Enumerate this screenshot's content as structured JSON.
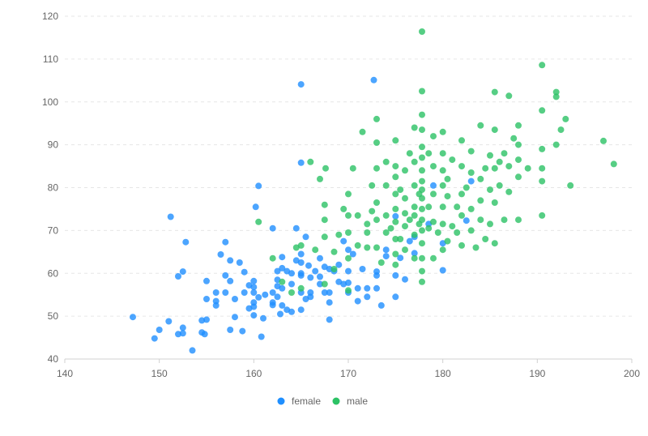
{
  "chart_data": {
    "type": "scatter",
    "xlim": [
      140,
      200
    ],
    "ylim": [
      40,
      120
    ],
    "x_ticks": [
      "140",
      "150",
      "160",
      "170",
      "180",
      "190",
      "200"
    ],
    "y_ticks": [
      "40",
      "50",
      "60",
      "70",
      "80",
      "90",
      "100",
      "110",
      "120"
    ],
    "grid": "horizontal dashed",
    "legend_position": "bottom-center",
    "series": [
      {
        "name": "female",
        "color": "#1f8fff",
        "points": [
          [
            147.2,
            49.8
          ],
          [
            149.5,
            44.8
          ],
          [
            150.0,
            46.8
          ],
          [
            151.0,
            48.8
          ],
          [
            151.2,
            73.2
          ],
          [
            152.0,
            59.3
          ],
          [
            152.0,
            45.8
          ],
          [
            152.5,
            60.4
          ],
          [
            152.5,
            46.0
          ],
          [
            152.5,
            47.3
          ],
          [
            152.8,
            67.3
          ],
          [
            153.5,
            42.0
          ],
          [
            154.5,
            49.0
          ],
          [
            154.5,
            46.2
          ],
          [
            154.8,
            45.8
          ],
          [
            155.0,
            49.2
          ],
          [
            155.0,
            54.0
          ],
          [
            155.0,
            58.2
          ],
          [
            156.0,
            53.5
          ],
          [
            156.0,
            52.5
          ],
          [
            156.0,
            55.5
          ],
          [
            156.5,
            64.4
          ],
          [
            157.0,
            67.3
          ],
          [
            157.0,
            59.5
          ],
          [
            157.0,
            55.5
          ],
          [
            157.5,
            46.8
          ],
          [
            157.5,
            63.0
          ],
          [
            157.5,
            58.2
          ],
          [
            158.0,
            54.0
          ],
          [
            158.0,
            49.8
          ],
          [
            158.5,
            62.5
          ],
          [
            158.8,
            46.5
          ],
          [
            159.0,
            60.3
          ],
          [
            159.0,
            55.5
          ],
          [
            159.5,
            51.8
          ],
          [
            159.5,
            57.2
          ],
          [
            160.0,
            50.2
          ],
          [
            160.0,
            52.2
          ],
          [
            160.0,
            55.5
          ],
          [
            160.0,
            56.8
          ],
          [
            160.0,
            53.2
          ],
          [
            160.0,
            58.2
          ],
          [
            160.2,
            75.5
          ],
          [
            160.5,
            54.4
          ],
          [
            160.5,
            80.4
          ],
          [
            160.8,
            45.2
          ],
          [
            161.0,
            49.5
          ],
          [
            161.2,
            55.0
          ],
          [
            162.0,
            52.6
          ],
          [
            162.0,
            55.5
          ],
          [
            162.0,
            53.2
          ],
          [
            162.0,
            70.5
          ],
          [
            162.5,
            54.5
          ],
          [
            162.5,
            57.0
          ],
          [
            162.5,
            60.5
          ],
          [
            162.5,
            58.5
          ],
          [
            162.8,
            50.5
          ],
          [
            163.0,
            56.5
          ],
          [
            163.0,
            52.5
          ],
          [
            163.0,
            61.2
          ],
          [
            163.0,
            63.8
          ],
          [
            163.5,
            51.5
          ],
          [
            163.5,
            60.5
          ],
          [
            164.0,
            57.5
          ],
          [
            164.0,
            60.0
          ],
          [
            164.0,
            51.0
          ],
          [
            164.5,
            63.0
          ],
          [
            164.5,
            70.5
          ],
          [
            165.0,
            104.1
          ],
          [
            165.0,
            55.5
          ],
          [
            165.0,
            59.5
          ],
          [
            165.0,
            51.5
          ],
          [
            165.0,
            64.5
          ],
          [
            165.0,
            62.5
          ],
          [
            165.0,
            60.0
          ],
          [
            165.0,
            85.8
          ],
          [
            165.5,
            68.5
          ],
          [
            165.5,
            54.0
          ],
          [
            165.8,
            61.8
          ],
          [
            166.0,
            54.5
          ],
          [
            166.0,
            55.5
          ],
          [
            166.0,
            59.0
          ],
          [
            166.5,
            60.5
          ],
          [
            167.0,
            57.5
          ],
          [
            167.0,
            63.5
          ],
          [
            167.0,
            59.2
          ],
          [
            167.5,
            61.5
          ],
          [
            167.5,
            55.5
          ],
          [
            168.0,
            61.0
          ],
          [
            168.0,
            53.2
          ],
          [
            168.0,
            49.2
          ],
          [
            168.0,
            55.5
          ],
          [
            168.5,
            60.5
          ],
          [
            169.0,
            58.0
          ],
          [
            169.0,
            62.0
          ],
          [
            169.5,
            57.5
          ],
          [
            169.5,
            67.5
          ],
          [
            170.0,
            57.8
          ],
          [
            170.0,
            65.5
          ],
          [
            170.0,
            55.5
          ],
          [
            170.0,
            60.5
          ],
          [
            170.5,
            64.5
          ],
          [
            171.0,
            56.5
          ],
          [
            171.0,
            53.5
          ],
          [
            171.5,
            61.0
          ],
          [
            172.0,
            54.5
          ],
          [
            172.0,
            56.5
          ],
          [
            172.7,
            105.1
          ],
          [
            173.0,
            59.5
          ],
          [
            173.0,
            60.4
          ],
          [
            173.0,
            56.5
          ],
          [
            173.5,
            52.5
          ],
          [
            174.0,
            65.5
          ],
          [
            174.0,
            64.0
          ],
          [
            175.0,
            54.5
          ],
          [
            175.0,
            59.5
          ],
          [
            175.0,
            73.3
          ],
          [
            175.5,
            63.6
          ],
          [
            176.0,
            58.6
          ],
          [
            176.5,
            67.5
          ],
          [
            177.0,
            64.7
          ],
          [
            177.0,
            68.5
          ],
          [
            178.5,
            71.5
          ],
          [
            179.0,
            80.5
          ],
          [
            180.0,
            60.7
          ],
          [
            180.0,
            67.0
          ],
          [
            183.0,
            81.5
          ],
          [
            182.5,
            72.3
          ]
        ]
      },
      {
        "name": "male",
        "color": "#2cc265",
        "points": [
          [
            160.5,
            72.0
          ],
          [
            162.0,
            63.5
          ],
          [
            163.0,
            58.0
          ],
          [
            164.0,
            55.5
          ],
          [
            164.5,
            66.0
          ],
          [
            165.0,
            56.5
          ],
          [
            165.0,
            66.5
          ],
          [
            166.0,
            86.0
          ],
          [
            166.5,
            65.5
          ],
          [
            167.0,
            82.0
          ],
          [
            167.5,
            57.5
          ],
          [
            167.5,
            68.5
          ],
          [
            167.5,
            72.5
          ],
          [
            167.5,
            76.0
          ],
          [
            167.6,
            84.5
          ],
          [
            168.5,
            61.0
          ],
          [
            168.5,
            65.0
          ],
          [
            169.0,
            69.0
          ],
          [
            169.5,
            75.0
          ],
          [
            170.0,
            56.0
          ],
          [
            170.0,
            63.5
          ],
          [
            170.0,
            69.5
          ],
          [
            170.0,
            73.5
          ],
          [
            170.0,
            78.5
          ],
          [
            170.5,
            84.5
          ],
          [
            171.0,
            66.5
          ],
          [
            171.0,
            73.5
          ],
          [
            171.5,
            93.0
          ],
          [
            172.0,
            66.0
          ],
          [
            172.0,
            69.5
          ],
          [
            172.0,
            71.5
          ],
          [
            172.5,
            74.5
          ],
          [
            172.5,
            80.5
          ],
          [
            173.0,
            66.0
          ],
          [
            173.0,
            72.5
          ],
          [
            173.0,
            76.5
          ],
          [
            173.0,
            84.5
          ],
          [
            173.0,
            90.5
          ],
          [
            173.0,
            96.0
          ],
          [
            173.5,
            62.5
          ],
          [
            174.0,
            69.5
          ],
          [
            174.0,
            73.5
          ],
          [
            174.0,
            80.5
          ],
          [
            174.0,
            86.0
          ],
          [
            174.5,
            70.5
          ],
          [
            175.0,
            62.0
          ],
          [
            175.0,
            64.5
          ],
          [
            175.0,
            68.0
          ],
          [
            175.0,
            72.0
          ],
          [
            175.0,
            75.0
          ],
          [
            175.0,
            78.5
          ],
          [
            175.0,
            82.5
          ],
          [
            175.0,
            85.0
          ],
          [
            175.0,
            91.0
          ],
          [
            175.5,
            68.0
          ],
          [
            175.5,
            79.5
          ],
          [
            176.0,
            65.5
          ],
          [
            176.0,
            71.0
          ],
          [
            176.0,
            74.0
          ],
          [
            176.0,
            77.5
          ],
          [
            176.0,
            84.0
          ],
          [
            176.5,
            72.5
          ],
          [
            176.5,
            88.0
          ],
          [
            177.0,
            63.5
          ],
          [
            177.0,
            69.0
          ],
          [
            177.0,
            73.5
          ],
          [
            177.0,
            75.5
          ],
          [
            177.0,
            80.5
          ],
          [
            177.0,
            86.0
          ],
          [
            177.0,
            94.0
          ],
          [
            177.5,
            71.5
          ],
          [
            177.5,
            78.5
          ],
          [
            177.8,
            58.0
          ],
          [
            177.8,
            60.5
          ],
          [
            177.8,
            63.5
          ],
          [
            177.8,
            67.0
          ],
          [
            177.8,
            70.0
          ],
          [
            177.8,
            72.5
          ],
          [
            177.8,
            75.0
          ],
          [
            177.8,
            77.5
          ],
          [
            177.8,
            79.5
          ],
          [
            177.8,
            81.5
          ],
          [
            177.8,
            84.0
          ],
          [
            177.8,
            87.0
          ],
          [
            177.8,
            89.5
          ],
          [
            177.8,
            93.5
          ],
          [
            177.8,
            97.0
          ],
          [
            177.8,
            102.5
          ],
          [
            177.8,
            116.4
          ],
          [
            178.5,
            70.5
          ],
          [
            178.5,
            75.5
          ],
          [
            178.5,
            88.0
          ],
          [
            179.0,
            63.5
          ],
          [
            179.0,
            72.0
          ],
          [
            179.0,
            78.5
          ],
          [
            179.0,
            85.0
          ],
          [
            179.0,
            92.0
          ],
          [
            179.5,
            69.5
          ],
          [
            180.0,
            65.5
          ],
          [
            180.0,
            71.5
          ],
          [
            180.0,
            75.5
          ],
          [
            180.0,
            80.5
          ],
          [
            180.0,
            84.0
          ],
          [
            180.0,
            88.0
          ],
          [
            180.0,
            93.0
          ],
          [
            180.5,
            67.5
          ],
          [
            180.5,
            78.0
          ],
          [
            180.5,
            82.0
          ],
          [
            181.0,
            71.0
          ],
          [
            181.0,
            86.5
          ],
          [
            181.5,
            69.5
          ],
          [
            181.5,
            75.5
          ],
          [
            182.0,
            66.5
          ],
          [
            182.0,
            73.5
          ],
          [
            182.0,
            78.5
          ],
          [
            182.0,
            85.0
          ],
          [
            182.0,
            91.0
          ],
          [
            182.5,
            80.0
          ],
          [
            183.0,
            70.0
          ],
          [
            183.0,
            75.0
          ],
          [
            183.0,
            83.5
          ],
          [
            183.0,
            88.5
          ],
          [
            183.5,
            66.0
          ],
          [
            184.0,
            72.5
          ],
          [
            184.0,
            77.0
          ],
          [
            184.0,
            82.0
          ],
          [
            184.0,
            94.5
          ],
          [
            184.5,
            68.0
          ],
          [
            184.5,
            84.5
          ],
          [
            185.0,
            71.5
          ],
          [
            185.0,
            79.5
          ],
          [
            185.0,
            87.5
          ],
          [
            185.5,
            67.0
          ],
          [
            185.5,
            76.5
          ],
          [
            185.5,
            84.5
          ],
          [
            185.5,
            93.5
          ],
          [
            185.5,
            102.3
          ],
          [
            186.0,
            80.5
          ],
          [
            186.0,
            86.0
          ],
          [
            186.5,
            72.5
          ],
          [
            186.5,
            88.0
          ],
          [
            187.0,
            79.0
          ],
          [
            187.0,
            85.0
          ],
          [
            187.0,
            101.4
          ],
          [
            187.5,
            91.5
          ],
          [
            188.0,
            72.5
          ],
          [
            188.0,
            82.5
          ],
          [
            188.0,
            86.5
          ],
          [
            188.0,
            90.0
          ],
          [
            188.0,
            94.5
          ],
          [
            189.0,
            84.5
          ],
          [
            190.5,
            73.5
          ],
          [
            190.5,
            81.5
          ],
          [
            190.5,
            84.5
          ],
          [
            190.5,
            89.0
          ],
          [
            190.5,
            98.0
          ],
          [
            190.5,
            108.6
          ],
          [
            192.0,
            90.0
          ],
          [
            192.0,
            101.2
          ],
          [
            192.0,
            102.3
          ],
          [
            192.5,
            93.5
          ],
          [
            193.0,
            96.0
          ],
          [
            193.5,
            80.5
          ],
          [
            197.0,
            90.9
          ],
          [
            198.1,
            85.5
          ]
        ]
      }
    ]
  },
  "legend": {
    "items": [
      {
        "label": "female",
        "color": "#1f8fff"
      },
      {
        "label": "male",
        "color": "#2cc265"
      }
    ]
  }
}
